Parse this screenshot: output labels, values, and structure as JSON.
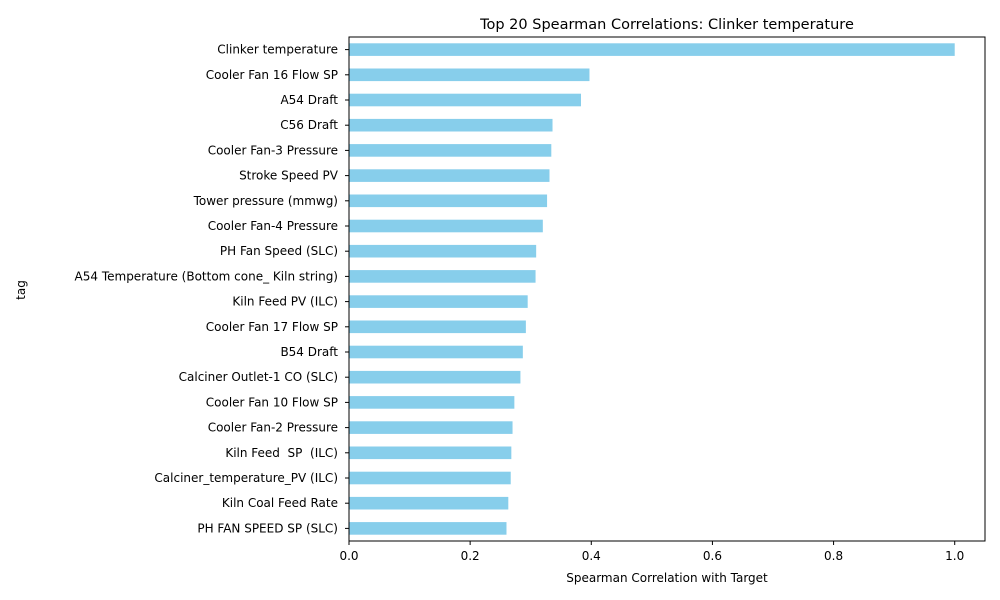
{
  "chart_data": {
    "type": "bar",
    "orientation": "horizontal",
    "title": "Top 20 Spearman Correlations: Clinker temperature",
    "xlabel": "Spearman Correlation with Target",
    "ylabel": "tag",
    "xlim": [
      0,
      1.05
    ],
    "xticks": [
      0.0,
      0.2,
      0.4,
      0.6,
      0.8,
      1.0
    ],
    "xtick_labels": [
      "0.0",
      "0.2",
      "0.4",
      "0.6",
      "0.8",
      "1.0"
    ],
    "grid": false,
    "bar_color": "#87ceeb",
    "categories": [
      "Clinker temperature",
      "Cooler Fan 16 Flow SP",
      "A54 Draft",
      "C56 Draft",
      "Cooler Fan-3 Pressure",
      "Stroke Speed PV",
      "Tower pressure (mmwg)",
      "Cooler Fan-4 Pressure",
      "PH Fan Speed (SLC)",
      "A54 Temperature (Bottom cone_ Kiln string)",
      "Kiln Feed PV (ILC)",
      "Cooler Fan 17 Flow SP",
      "B54 Draft",
      "Calciner Outlet-1 CO (SLC)",
      "Cooler Fan 10 Flow SP",
      "Cooler Fan-2 Pressure",
      "Kiln Feed  SP  (ILC)",
      "Calciner_temperature_PV (ILC)",
      "Kiln Coal Feed Rate",
      "PH FAN SPEED SP (SLC)"
    ],
    "values": [
      1.0,
      0.397,
      0.383,
      0.336,
      0.334,
      0.331,
      0.327,
      0.32,
      0.309,
      0.308,
      0.295,
      0.292,
      0.287,
      0.283,
      0.273,
      0.27,
      0.268,
      0.267,
      0.263,
      0.26
    ]
  }
}
